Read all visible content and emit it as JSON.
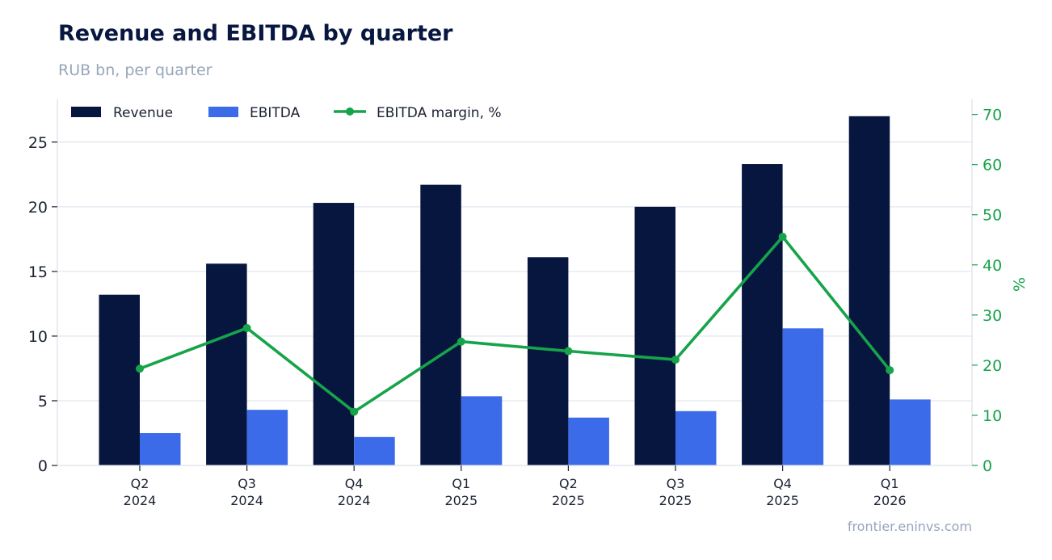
{
  "chart_data": {
    "type": "bar",
    "title": "Revenue and EBITDA by quarter",
    "subtitle": "RUB bn, per quarter",
    "source": "frontier.eninvs.com",
    "categories": [
      [
        "Q2",
        "2024"
      ],
      [
        "Q3",
        "2024"
      ],
      [
        "Q4",
        "2024"
      ],
      [
        "Q1",
        "2025"
      ],
      [
        "Q2",
        "2025"
      ],
      [
        "Q3",
        "2025"
      ],
      [
        "Q4",
        "2025"
      ],
      [
        "Q1",
        "2026"
      ]
    ],
    "series": [
      {
        "name": "Revenue",
        "type": "bar",
        "axis": "left",
        "color": "#06163f",
        "values": [
          13.2,
          15.6,
          20.3,
          21.7,
          16.1,
          20.0,
          23.3,
          27.0
        ]
      },
      {
        "name": "EBITDA",
        "type": "bar",
        "axis": "left",
        "color": "#3b6be8",
        "values": [
          2.5,
          4.3,
          2.2,
          5.35,
          3.7,
          4.2,
          10.6,
          5.1
        ]
      },
      {
        "name": "EBITDA margin, %",
        "type": "line",
        "axis": "right",
        "color": "#16a34a",
        "values": [
          19.3,
          27.4,
          10.7,
          24.7,
          22.8,
          21.1,
          45.6,
          19.0
        ]
      }
    ],
    "y_left": {
      "lim": [
        0,
        28.3
      ],
      "ticks": [
        0,
        5,
        10,
        15,
        20,
        25
      ]
    },
    "y_right": {
      "label": "%",
      "lim": [
        0,
        73
      ],
      "ticks": [
        0,
        10,
        20,
        30,
        40,
        50,
        60,
        70
      ]
    },
    "grid": true,
    "legend": "top-left"
  }
}
